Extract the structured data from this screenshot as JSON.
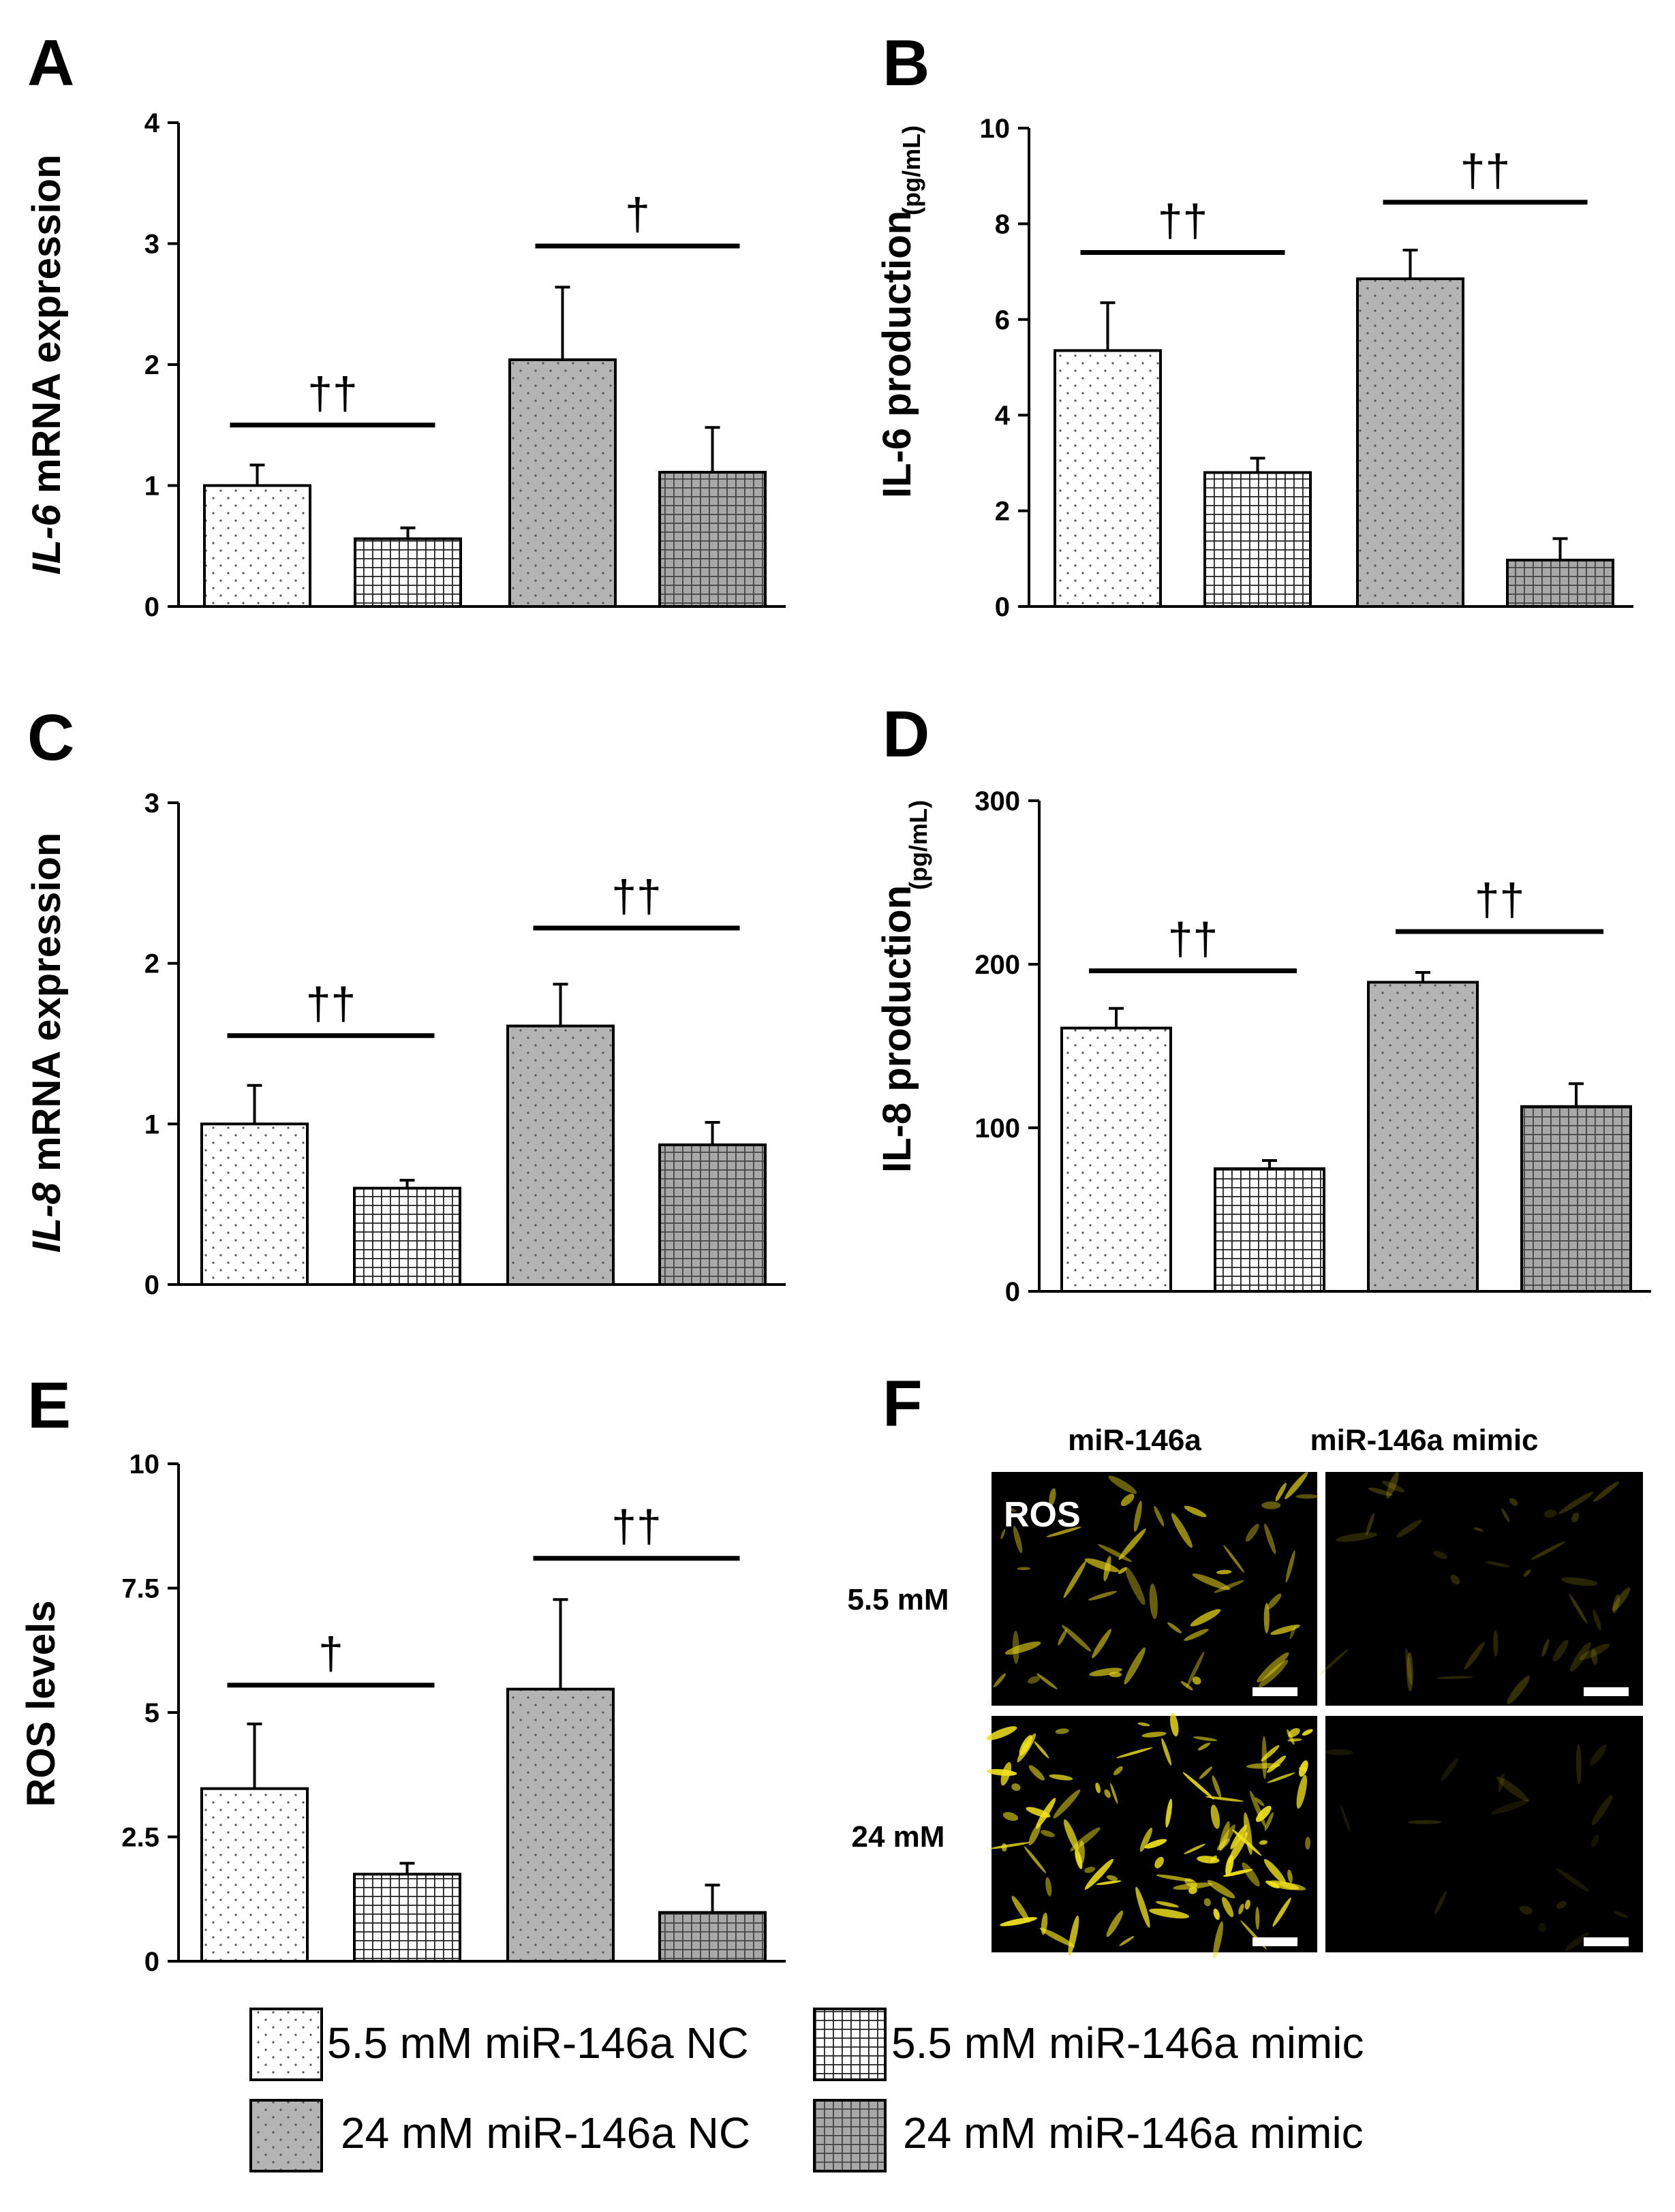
{
  "patterns": {
    "5.5 mM miR-146a NC": "dots-white",
    "5.5 mM miR-146a mimic": "grid-white",
    "24 mM miR-146a NC": "dots-gray",
    "24 mM miR-146a mimic": "grid-gray"
  },
  "colors": {
    "axis": "#000000",
    "bar_gray": "#b4b4b4",
    "fluorescence": "#f2e21c",
    "image_bg": "#000000"
  },
  "chart_data": [
    {
      "panel": "A",
      "type": "bar",
      "ylabel_parts": [
        {
          "text": "IL-6",
          "italic": true
        },
        {
          "text": " mRNA expression",
          "italic": false
        }
      ],
      "ylabel_unit": "",
      "ylim": [
        0,
        4
      ],
      "yticks": [
        "0",
        "1",
        "2",
        "3",
        "4"
      ],
      "series": [
        {
          "name": "5.5 mM miR-146a NC",
          "value": 1.0,
          "error": 0.17
        },
        {
          "name": "5.5 mM miR-146a mimic",
          "value": 0.56,
          "error": 0.09
        },
        {
          "name": "24 mM miR-146a NC",
          "value": 2.04,
          "error": 0.6
        },
        {
          "name": "24 mM miR-146a mimic",
          "value": 1.11,
          "error": 0.37
        }
      ],
      "annotations": [
        {
          "text": "††",
          "pair": [
            0,
            1
          ],
          "level": 1.5
        },
        {
          "text": "†",
          "pair": [
            2,
            3
          ],
          "level": 2.98
        }
      ]
    },
    {
      "panel": "B",
      "type": "bar",
      "ylabel_parts": [
        {
          "text": "IL-6 production",
          "italic": false
        }
      ],
      "ylabel_unit": "(pg/mL)",
      "ylim": [
        0,
        10
      ],
      "yticks": [
        "0",
        "2",
        "4",
        "6",
        "8",
        "10"
      ],
      "series": [
        {
          "name": "5.5 mM miR-146a NC",
          "value": 5.35,
          "error": 1.0
        },
        {
          "name": "5.5 mM miR-146a mimic",
          "value": 2.8,
          "error": 0.3
        },
        {
          "name": "24 mM miR-146a NC",
          "value": 6.85,
          "error": 0.6
        },
        {
          "name": "24 mM miR-146a mimic",
          "value": 0.97,
          "error": 0.45
        }
      ],
      "annotations": [
        {
          "text": "††",
          "pair": [
            0,
            1
          ],
          "level": 7.4
        },
        {
          "text": "††",
          "pair": [
            2,
            3
          ],
          "level": 8.45
        }
      ]
    },
    {
      "panel": "C",
      "type": "bar",
      "ylabel_parts": [
        {
          "text": "IL-8",
          "italic": true
        },
        {
          "text": " mRNA expression",
          "italic": false
        }
      ],
      "ylabel_unit": "",
      "ylim": [
        0,
        3
      ],
      "yticks": [
        "0",
        "1",
        "2",
        "3"
      ],
      "series": [
        {
          "name": "5.5 mM miR-146a NC",
          "value": 1.0,
          "error": 0.24
        },
        {
          "name": "5.5 mM miR-146a mimic",
          "value": 0.6,
          "error": 0.05
        },
        {
          "name": "24 mM miR-146a NC",
          "value": 1.61,
          "error": 0.26
        },
        {
          "name": "24 mM miR-146a mimic",
          "value": 0.87,
          "error": 0.14
        }
      ],
      "annotations": [
        {
          "text": "††",
          "pair": [
            0,
            1
          ],
          "level": 1.55
        },
        {
          "text": "††",
          "pair": [
            2,
            3
          ],
          "level": 2.22
        }
      ]
    },
    {
      "panel": "D",
      "type": "bar",
      "ylabel_parts": [
        {
          "text": "IL-8 production",
          "italic": false
        }
      ],
      "ylabel_unit": "(pg/mL)",
      "ylim": [
        0,
        300
      ],
      "yticks": [
        "0",
        "100",
        "200",
        "300"
      ],
      "series": [
        {
          "name": "5.5 mM miR-146a NC",
          "value": 161,
          "error": 12
        },
        {
          "name": "5.5 mM miR-146a mimic",
          "value": 75,
          "error": 5
        },
        {
          "name": "24 mM miR-146a NC",
          "value": 189,
          "error": 6
        },
        {
          "name": "24 mM miR-146a mimic",
          "value": 113,
          "error": 14
        }
      ],
      "annotations": [
        {
          "text": "††",
          "pair": [
            0,
            1
          ],
          "level": 196
        },
        {
          "text": "††",
          "pair": [
            2,
            3
          ],
          "level": 220
        }
      ]
    },
    {
      "panel": "E",
      "type": "bar",
      "ylabel_parts": [
        {
          "text": "ROS levels",
          "italic": false
        }
      ],
      "ylabel_unit": "",
      "ylim": [
        0,
        10
      ],
      "yticks": [
        "0",
        "2.5",
        "5",
        "7.5",
        "10"
      ],
      "series": [
        {
          "name": "5.5 mM miR-146a NC",
          "value": 3.47,
          "error": 1.3
        },
        {
          "name": "5.5 mM miR-146a mimic",
          "value": 1.75,
          "error": 0.22
        },
        {
          "name": "24 mM miR-146a NC",
          "value": 5.47,
          "error": 1.8
        },
        {
          "name": "24 mM miR-146a mimic",
          "value": 0.98,
          "error": 0.55
        }
      ],
      "annotations": [
        {
          "text": "†",
          "pair": [
            0,
            1
          ],
          "level": 5.55
        },
        {
          "text": "††",
          "pair": [
            2,
            3
          ],
          "level": 8.1
        }
      ]
    }
  ],
  "panel_f": {
    "letter": "F",
    "column_headers": [
      "miR-146a",
      "miR-146a mimic"
    ],
    "row_labels": [
      "5.5 mM",
      "24 mM"
    ],
    "image_label": "ROS"
  },
  "legend": [
    {
      "label": "5.5 mM miR-146a NC",
      "pattern": "dots-white"
    },
    {
      "label": "5.5 mM miR-146a mimic",
      "pattern": "grid-white"
    },
    {
      "label": "24 mM miR-146a NC",
      "pattern": "dots-gray"
    },
    {
      "label": "24 mM miR-146a mimic",
      "pattern": "grid-gray"
    }
  ]
}
